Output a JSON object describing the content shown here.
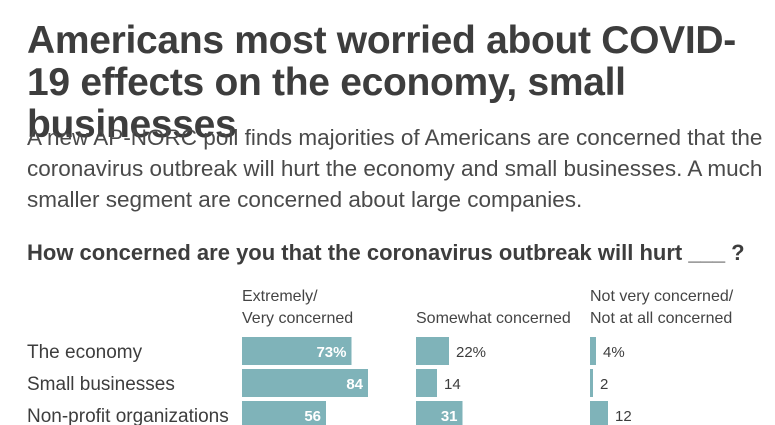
{
  "title": "Americans most worried about COVID-19 effects on the economy, small businesses",
  "subtitle": "A new AP-NORC poll finds majorities of Americans are concerned that the coronavirus outbreak will hurt the economy and small businesses. A much smaller segment are concerned about large companies.",
  "question": "How concerned are you that the coronavirus outbreak will hurt ___ ?",
  "colors": {
    "bar": "#7fb3b9"
  },
  "chart_data": {
    "type": "bar",
    "categories": [
      "The economy",
      "Small businesses",
      "Non-profit organizations"
    ],
    "series": [
      {
        "name": "Extremely/ Very concerned",
        "header_lines": [
          "Extremely/",
          "Very concerned"
        ],
        "values": [
          73,
          84,
          56
        ],
        "labels": [
          "73%",
          "84",
          "56"
        ]
      },
      {
        "name": "Somewhat concerned",
        "header_lines": [
          "Somewhat concerned"
        ],
        "values": [
          22,
          14,
          31
        ],
        "labels": [
          "22%",
          "14",
          "31"
        ]
      },
      {
        "name": "Not very concerned/ Not at all concerned",
        "header_lines": [
          "Not very concerned/",
          "Not at all concerned"
        ],
        "values": [
          4,
          2,
          12
        ],
        "labels": [
          "4%",
          "2",
          "12"
        ]
      }
    ],
    "units": "%",
    "xlim": [
      0,
      100
    ]
  }
}
